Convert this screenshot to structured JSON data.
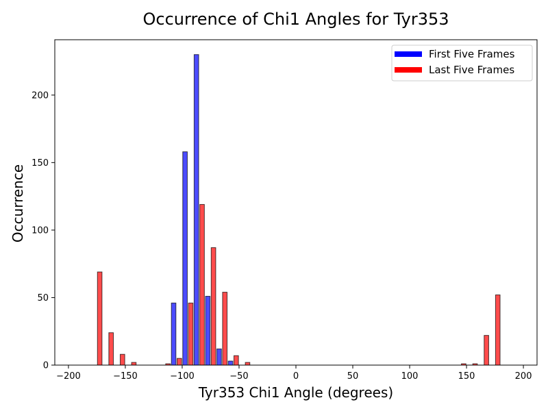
{
  "chart_data": {
    "type": "bar",
    "title": "Occurrence of Chi1 Angles for Tyr353",
    "xlabel": "Tyr353 Chi1 Angle (degrees)",
    "ylabel": "Occurrence",
    "xlim": [
      -212,
      212
    ],
    "ylim": [
      0,
      241
    ],
    "xticks": [
      -200,
      -150,
      -100,
      -50,
      0,
      50,
      100,
      150,
      200
    ],
    "yticks": [
      0,
      50,
      100,
      150,
      200
    ],
    "bin_edges": [
      -180,
      -170,
      -160,
      -150,
      -140,
      -130,
      -120,
      -110,
      -100,
      -90,
      -80,
      -70,
      -60,
      -50,
      -40,
      -30,
      -20,
      -10,
      0,
      10,
      20,
      30,
      40,
      50,
      60,
      70,
      80,
      90,
      100,
      110,
      120,
      130,
      140,
      150,
      160,
      170,
      180
    ],
    "series": [
      {
        "name": "First Five Frames",
        "color": "#0000ff",
        "values": [
          0,
          0,
          0,
          0,
          0,
          0,
          0,
          46,
          158,
          230,
          51,
          12,
          3,
          0,
          0,
          0,
          0,
          0,
          0,
          0,
          0,
          0,
          0,
          0,
          0,
          0,
          0,
          0,
          0,
          0,
          0,
          0,
          0,
          0,
          0,
          0
        ]
      },
      {
        "name": "Last Five Frames",
        "color": "#ff0000",
        "values": [
          69,
          24,
          8,
          2,
          0,
          0,
          1,
          5,
          46,
          119,
          87,
          54,
          7,
          2,
          0,
          0,
          0,
          0,
          0,
          0,
          0,
          0,
          0,
          0,
          0,
          0,
          0,
          0,
          0,
          0,
          0,
          0,
          1,
          1,
          22,
          52
        ]
      }
    ],
    "bar_alpha": 0.7,
    "edge_color": "#000000",
    "legend_position": "top-right",
    "grid": false
  }
}
